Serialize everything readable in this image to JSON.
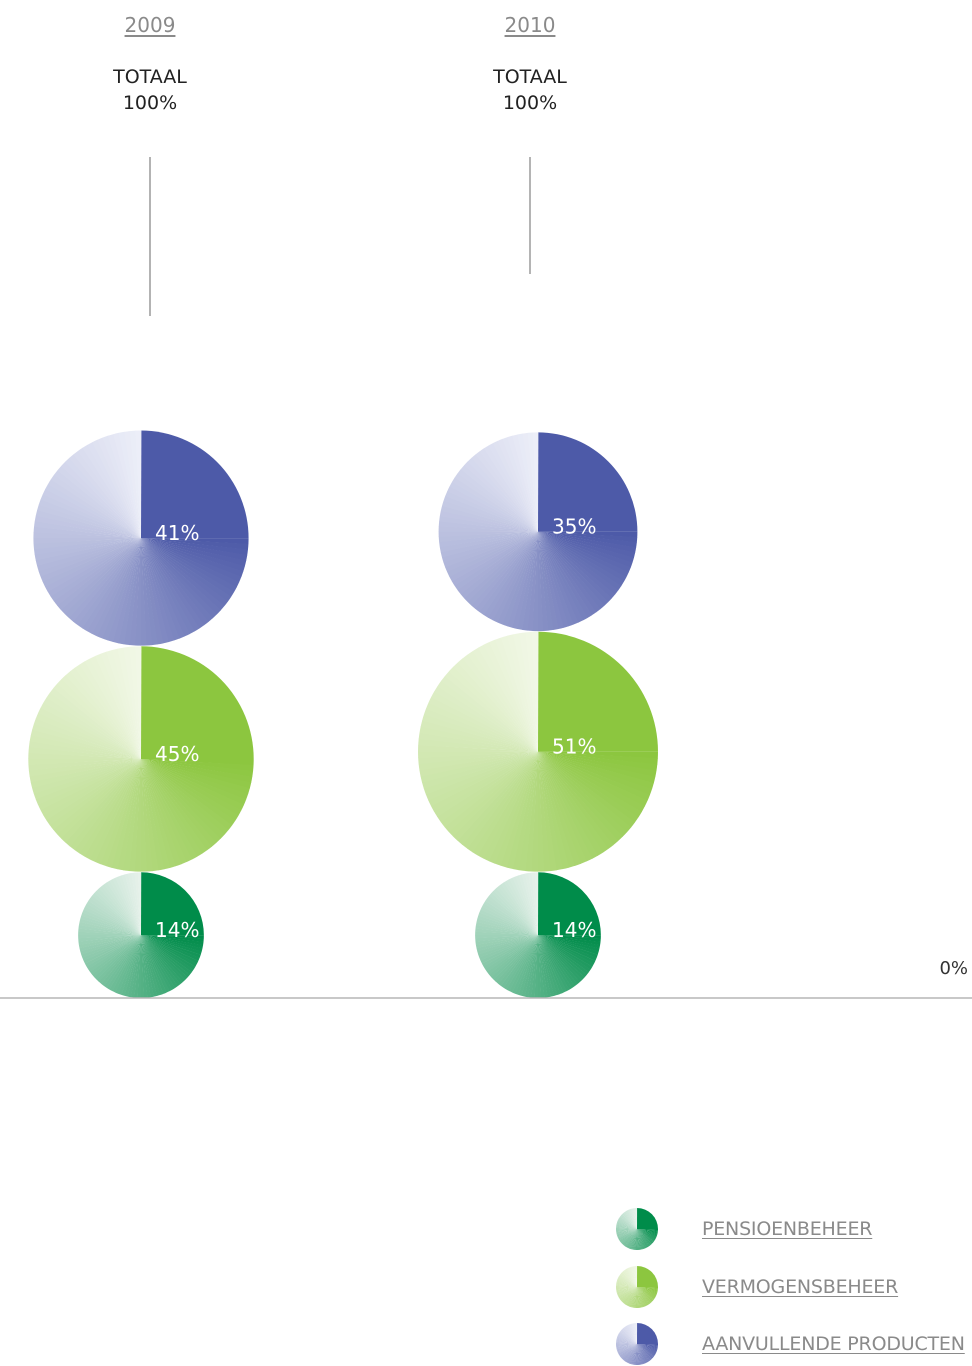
{
  "chart_data": {
    "type": "bubble-pie",
    "baseline_label": "0%",
    "legend_placement": "bottom-right",
    "legend": [
      {
        "key": "pensioenbeheer",
        "label": "PENSIOENBEHEER",
        "color": "#008c4a",
        "color_light": "#e6f1ea"
      },
      {
        "key": "vermogensbeheer",
        "label": "VERMOGENSBEHEER",
        "color": "#8cc63f",
        "color_light": "#f1f7e6"
      },
      {
        "key": "aanvullende",
        "label": "AANVULLENDE PRODUCTEN",
        "color": "#4d5aa8",
        "color_light": "#eceef8"
      }
    ],
    "groups": [
      {
        "year": "2009",
        "total_label": "TOTAAL",
        "total_value": "100%",
        "segments": [
          {
            "key": "pensioenbeheer",
            "value": 14,
            "label": "14%"
          },
          {
            "key": "vermogensbeheer",
            "value": 45,
            "label": "45%"
          },
          {
            "key": "aanvullende",
            "value": 41,
            "label": "41%"
          }
        ]
      },
      {
        "year": "2010",
        "total_label": "TOTAAL",
        "total_value": "100%",
        "segments": [
          {
            "key": "pensioenbeheer",
            "value": 14,
            "label": "14%"
          },
          {
            "key": "vermogensbeheer",
            "value": 51,
            "label": "51%"
          },
          {
            "key": "aanvullende",
            "value": 35,
            "label": "35%"
          }
        ]
      }
    ]
  }
}
